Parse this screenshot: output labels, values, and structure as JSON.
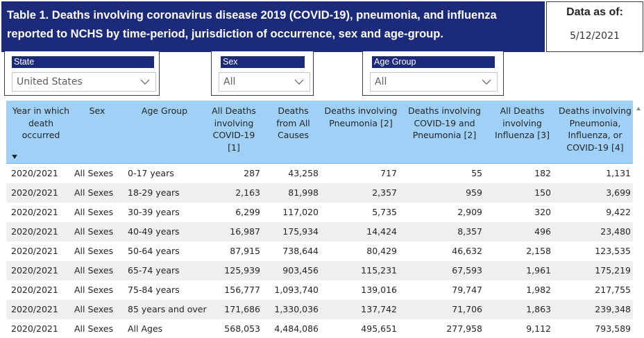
{
  "title": {
    "line1": "Table 1. Deaths involving coronavirus disease 2019 (COVID-19), pneumonia, and influenza",
    "line2": "reported to NCHS by time-period, jurisdiction of occurrence, sex and age-group."
  },
  "as_of": {
    "label": "Data as of:",
    "value": "5/12/2021"
  },
  "filters": {
    "state": {
      "label": "State",
      "value": "United States"
    },
    "sex": {
      "label": "Sex",
      "value": "All"
    },
    "age_group": {
      "label": "Age Group",
      "value": "All"
    }
  },
  "table": {
    "columns": [
      "Year in which death occurred",
      "Sex",
      "Age Group",
      "All Deaths involving COVID-19 [1]",
      "Deaths from All Causes",
      "Deaths involving Pneumonia [2]",
      "Deaths involving COVID-19 and Pneumonia [2]",
      "All Deaths involving Influenza [3]",
      "Deaths involving Pneumonia, Influenza, or COVID-19 [4]"
    ],
    "column_lines": [
      [
        "Year in which",
        "death",
        "occurred"
      ],
      [
        "Sex"
      ],
      [
        "Age Group"
      ],
      [
        "All Deaths",
        "involving",
        "COVID-19 [1]"
      ],
      [
        "Deaths",
        "from All",
        "Causes"
      ],
      [
        "Deaths involving",
        "Pneumonia [2]"
      ],
      [
        "Deaths involving",
        "COVID-19 and",
        "Pneumonia [2]"
      ],
      [
        "All Deaths",
        "involving",
        "Influenza [3]"
      ],
      [
        "Deaths involving",
        "Pneumonia,",
        "Influenza, or",
        "COVID-19 [4]"
      ]
    ],
    "sort_icon": "sort-descending-icon",
    "rows": [
      [
        "2020/2021",
        "All Sexes",
        "0-17 years",
        "287",
        "43,258",
        "717",
        "55",
        "182",
        "1,131"
      ],
      [
        "2020/2021",
        "All Sexes",
        "18-29 years",
        "2,163",
        "81,998",
        "2,357",
        "959",
        "150",
        "3,699"
      ],
      [
        "2020/2021",
        "All Sexes",
        "30-39 years",
        "6,299",
        "117,020",
        "5,735",
        "2,909",
        "320",
        "9,422"
      ],
      [
        "2020/2021",
        "All Sexes",
        "40-49 years",
        "16,987",
        "175,934",
        "14,424",
        "8,357",
        "496",
        "23,480"
      ],
      [
        "2020/2021",
        "All Sexes",
        "50-64 years",
        "87,915",
        "738,644",
        "80,429",
        "46,632",
        "2,158",
        "123,535"
      ],
      [
        "2020/2021",
        "All Sexes",
        "65-74 years",
        "125,939",
        "903,456",
        "115,231",
        "67,593",
        "1,961",
        "175,219"
      ],
      [
        "2020/2021",
        "All Sexes",
        "75-84 years",
        "156,777",
        "1,093,740",
        "139,016",
        "79,747",
        "1,982",
        "217,755"
      ],
      [
        "2020/2021",
        "All Sexes",
        "85 years and over",
        "171,686",
        "1,330,036",
        "137,742",
        "71,706",
        "1,863",
        "239,348"
      ],
      [
        "2020/2021",
        "All Sexes",
        "All Ages",
        "568,053",
        "4,484,086",
        "495,651",
        "277,958",
        "9,112",
        "793,589"
      ]
    ]
  },
  "colors": {
    "banner": "#1c2a7a",
    "header_bg": "#9fd0f7",
    "alt_row": "#efeff0"
  },
  "icons": {
    "dropdown": "chevron-down-icon",
    "scroll_up": "scroll-up-arrow-icon"
  }
}
